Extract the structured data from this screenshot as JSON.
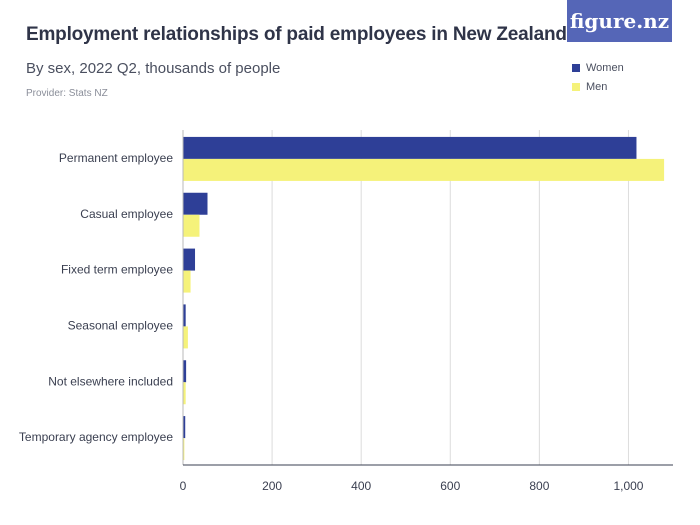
{
  "header": {
    "title": "Employment relationships of paid employees in New Zealand",
    "subtitle": "By sex, 2022 Q2, thousands of people",
    "provider": "Provider: Stats NZ",
    "logo": "figure.nz"
  },
  "colors": {
    "women": "#2e3f97",
    "men": "#f5f27a",
    "grid": "#dcdcdc",
    "logo_bg": "#5566b7"
  },
  "chart_data": {
    "type": "bar",
    "orientation": "horizontal",
    "title": "Employment relationships of paid employees in New Zealand",
    "subtitle": "By sex, 2022 Q2, thousands of people",
    "xlabel": "",
    "ylabel": "",
    "categories": [
      "Permanent employee",
      "Casual employee",
      "Fixed term employee",
      "Seasonal employee",
      "Not elsewhere included",
      "Temporary agency employee"
    ],
    "series": [
      {
        "name": "Women",
        "values": [
          1018,
          55,
          27,
          6,
          7,
          5
        ]
      },
      {
        "name": "Men",
        "values": [
          1080,
          37,
          17,
          11,
          6,
          3
        ]
      }
    ],
    "xlim": [
      0,
      1100
    ],
    "ticks": [
      0,
      200,
      400,
      600,
      800,
      1000
    ],
    "tick_labels": [
      "0",
      "200",
      "400",
      "600",
      "800",
      "1,000"
    ],
    "grid": true,
    "legend_position": "top-right"
  }
}
